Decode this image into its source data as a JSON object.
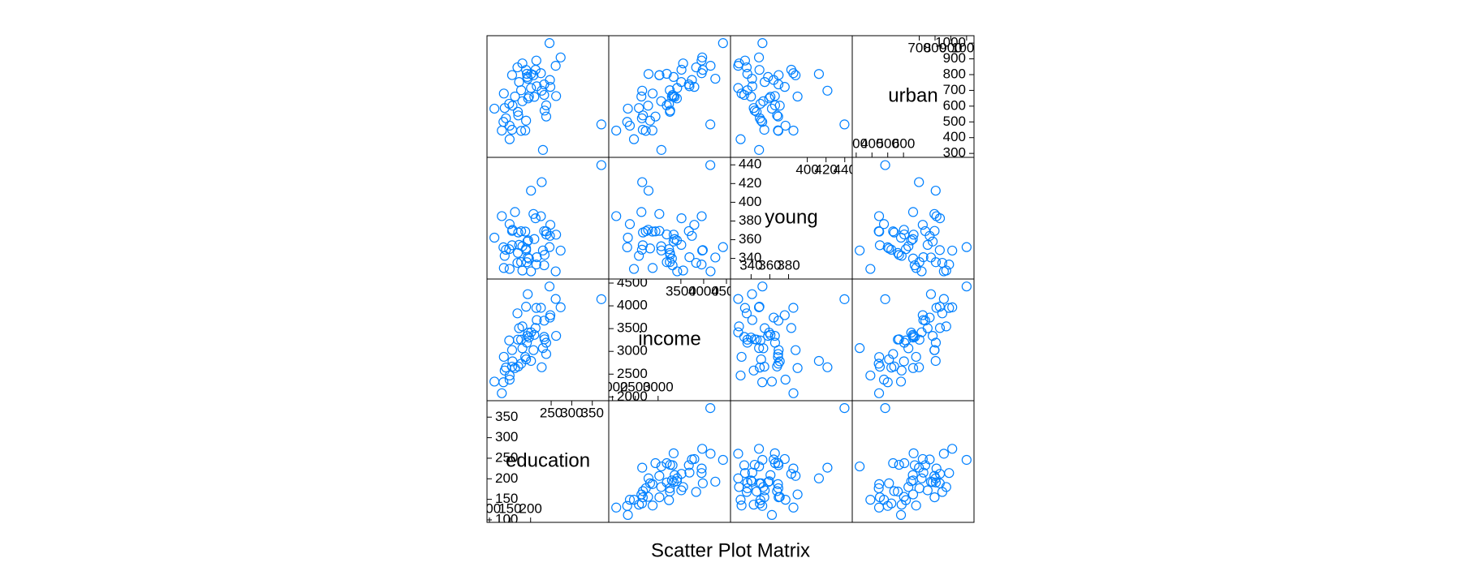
{
  "chart_data": {
    "type": "splom",
    "title": "Scatter Plot Matrix",
    "color": "#0080ff",
    "variables": [
      {
        "name": "education",
        "lim": [
          94,
          390
        ],
        "ticks": [
          100,
          150,
          200,
          250,
          300,
          350
        ],
        "values": [
          189,
          169,
          230,
          168,
          180,
          193,
          261,
          214,
          201,
          172,
          194,
          189,
          233,
          209,
          262,
          234,
          177,
          177,
          187,
          148,
          196,
          248,
          247,
          246,
          180,
          149,
          155,
          149,
          156,
          191,
          140,
          137,
          112,
          130,
          134,
          162,
          135,
          155,
          238,
          170,
          238,
          192,
          227,
          207,
          201,
          225,
          215,
          233,
          273,
          372,
          212
        ]
      },
      {
        "name": "income",
        "lim": [
          1917,
          4589
        ],
        "ticks": [
          2000,
          2500,
          3000,
          3500,
          4000,
          4500
        ],
        "values": [
          2824,
          3259,
          3072,
          3835,
          3549,
          4256,
          4151,
          3954,
          3419,
          3509,
          3412,
          3981,
          3675,
          3363,
          3341,
          3265,
          3257,
          2730,
          2876,
          3239,
          3303,
          3795,
          3742,
          4425,
          3068,
          2470,
          2664,
          2380,
          2781,
          3191,
          2645,
          2579,
          2337,
          2081,
          2322,
          2634,
          2880,
          3029,
          2942,
          2668,
          3190,
          3340,
          2651,
          3027,
          2790,
          3957,
          3688,
          3317,
          3968,
          4146,
          3513
        ]
      },
      {
        "name": "young",
        "lim": [
          318,
          448
        ],
        "ticks": [
          340,
          360,
          380,
          400,
          420,
          440
        ],
        "values": [
          350.7,
          345.9,
          348.5,
          335.3,
          327.1,
          341.0,
          326.2,
          333.5,
          326.2,
          354.5,
          359.3,
          348.9,
          369.2,
          360.7,
          365.4,
          343.8,
          336.1,
          369.1,
          368.7,
          349.9,
          339.9,
          375.9,
          364.1,
          352.1,
          353.0,
          328.8,
          354.1,
          376.7,
          370.6,
          336.0,
          349.3,
          342.8,
          362.2,
          385.2,
          351.9,
          389.6,
          329.8,
          369.4,
          368.9,
          367.7,
          365.6,
          358.1,
          421.5,
          387.5,
          412.4,
          385.1,
          341.3,
          332.7,
          348.4,
          439.7,
          382.9
        ]
      },
      {
        "name": "urban",
        "lim": [
          275,
          1047
        ],
        "ticks": [
          300,
          400,
          500,
          600,
          700,
          800,
          900,
          1000
        ],
        "values": [
          508,
          564,
          322,
          846,
          871,
          774,
          856,
          889,
          715,
          753,
          649,
          830,
          738,
          659,
          664,
          572,
          701,
          443,
          446,
          615,
          661,
          722,
          766,
          1000,
          631,
          390,
          450,
          476,
          603,
          805,
          523,
          588,
          584,
          445,
          500,
          661,
          680,
          797,
          534,
          541,
          605,
          785,
          698,
          796,
          804,
          809,
          726,
          671,
          909,
          484,
          831
        ]
      }
    ]
  }
}
